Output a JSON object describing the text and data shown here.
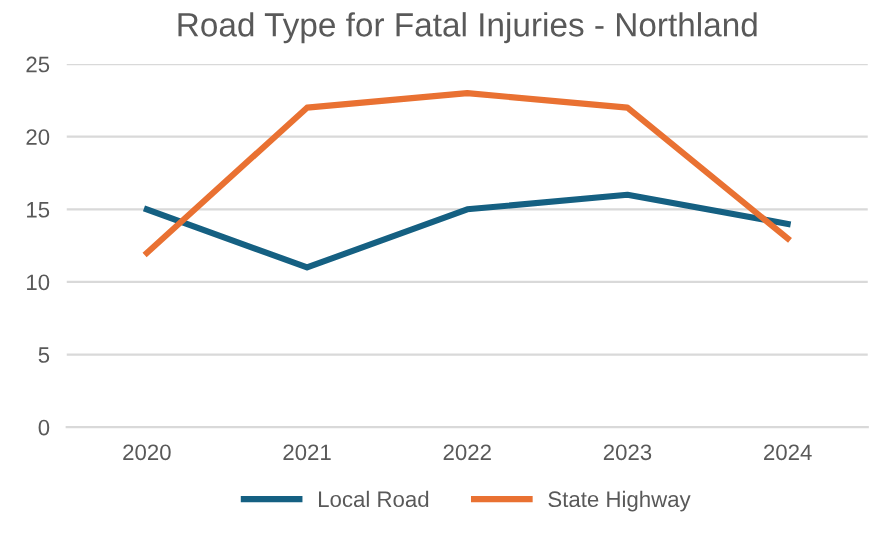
{
  "chart_data": {
    "type": "line",
    "title": "Road Type for Fatal Injuries - Northland",
    "categories": [
      "2020",
      "2021",
      "2022",
      "2023",
      "2024"
    ],
    "series": [
      {
        "name": "Local Road",
        "color": "#156082",
        "values": [
          15,
          11,
          15,
          16,
          14
        ]
      },
      {
        "name": "State Highway",
        "color": "#e97132",
        "values": [
          12,
          22,
          23,
          22,
          13
        ]
      }
    ],
    "ylim": [
      0,
      25
    ],
    "yticks": [
      0,
      5,
      10,
      15,
      20,
      25
    ],
    "grid": "y",
    "legend": "bottom",
    "marker": "none",
    "line_style": "solid"
  }
}
